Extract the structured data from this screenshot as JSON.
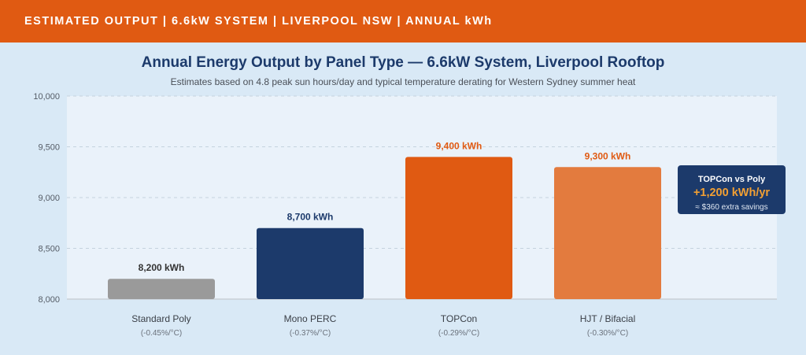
{
  "banner": {
    "text": "ESTIMATED OUTPUT | 6.6kW SYSTEM | LIVERPOOL NSW | ANNUAL kWh"
  },
  "colors": {
    "banner": "#e05a12",
    "background": "#d9e9f6",
    "plot_area": "#eaf2fa",
    "navy": "#1c3a6b",
    "accent_orange": "#f2a033"
  },
  "chart_data": {
    "type": "bar",
    "title": "Annual Energy Output by Panel Type — 6.6kW System, Liverpool Rooftop",
    "subtitle": "Estimates based on 4.8 peak sun hours/day and typical temperature derating for Western Sydney summer heat",
    "xlabel": "",
    "ylabel": "",
    "ylim": [
      8000,
      10000
    ],
    "yticks": [
      8000,
      8500,
      9000,
      9500,
      10000
    ],
    "ytick_labels": [
      "8,000",
      "8,500",
      "9,000",
      "9,500",
      "10,000"
    ],
    "grid": true,
    "categories": [
      "Standard Poly",
      "Mono PERC",
      "TOPCon",
      "HJT / Bifacial"
    ],
    "category_notes": [
      "(-0.45%/°C)",
      "(-0.37%/°C)",
      "(-0.29%/°C)",
      "(-0.30%/°C)"
    ],
    "values": [
      8200,
      8700,
      9400,
      9300
    ],
    "value_labels": [
      "8,200 kWh",
      "8,700 kWh",
      "9,400 kWh",
      "9,300 kWh"
    ],
    "bar_colors": [
      "#9a9a9a",
      "#1c3a6b",
      "#e05a12",
      "#e37b3e"
    ],
    "label_colors": [
      "#333333",
      "#1c3a6b",
      "#e05a12",
      "#e05a12"
    ],
    "annotation": {
      "title": "TOPCon vs Poly",
      "value": "+1,200 kWh/yr",
      "note": "≈ $360 extra savings"
    }
  }
}
